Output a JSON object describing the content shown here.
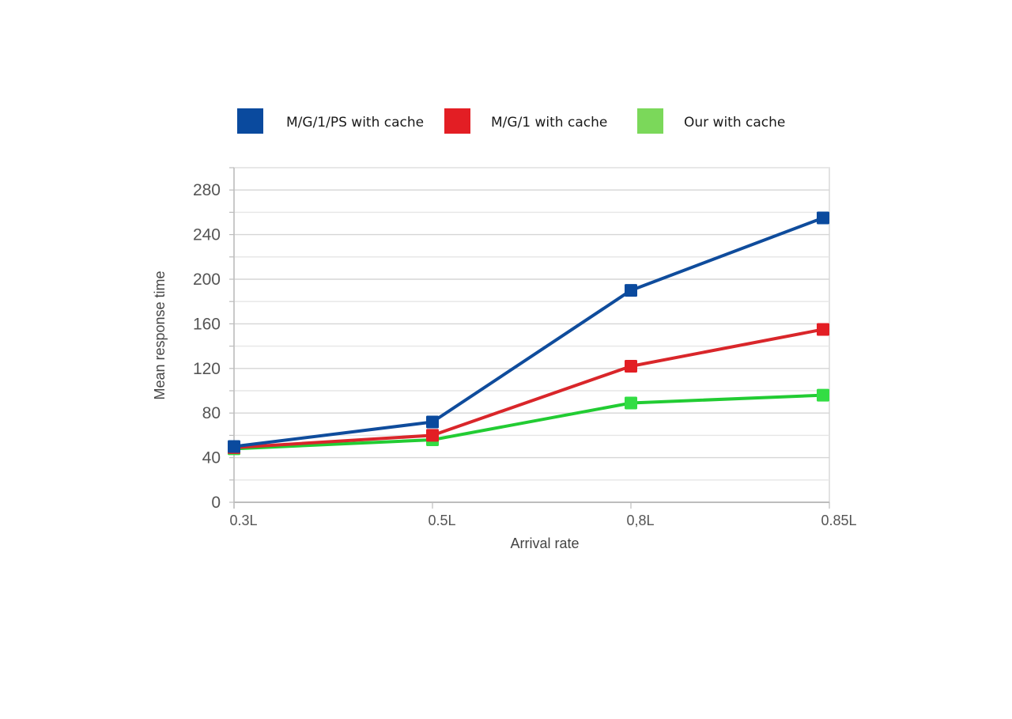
{
  "chart_data": {
    "type": "line",
    "title": "",
    "xlabel": "Arrival rate",
    "ylabel": "Mean response time",
    "categories": [
      "0.3L",
      "0.5L",
      "0,8L",
      "0.85L"
    ],
    "ylim": [
      0,
      300
    ],
    "yticks": [
      0,
      40,
      80,
      120,
      160,
      200,
      240,
      280
    ],
    "grid": true,
    "legend_position": "top",
    "series": [
      {
        "name": "M/G/1/PS with cache",
        "color": "#0f4c9c",
        "marker_color": "#0a4a9e",
        "values": [
          50,
          72,
          190,
          255
        ]
      },
      {
        "name": "M/G/1 with cache",
        "color": "#d9262a",
        "marker_color": "#e31e24",
        "values": [
          49,
          60,
          122,
          155
        ]
      },
      {
        "name": "Our with cache",
        "color": "#22cc33",
        "marker_color": "#33dd44",
        "legend_color": "#7bd85a",
        "values": [
          48,
          56,
          89,
          96
        ]
      }
    ]
  }
}
